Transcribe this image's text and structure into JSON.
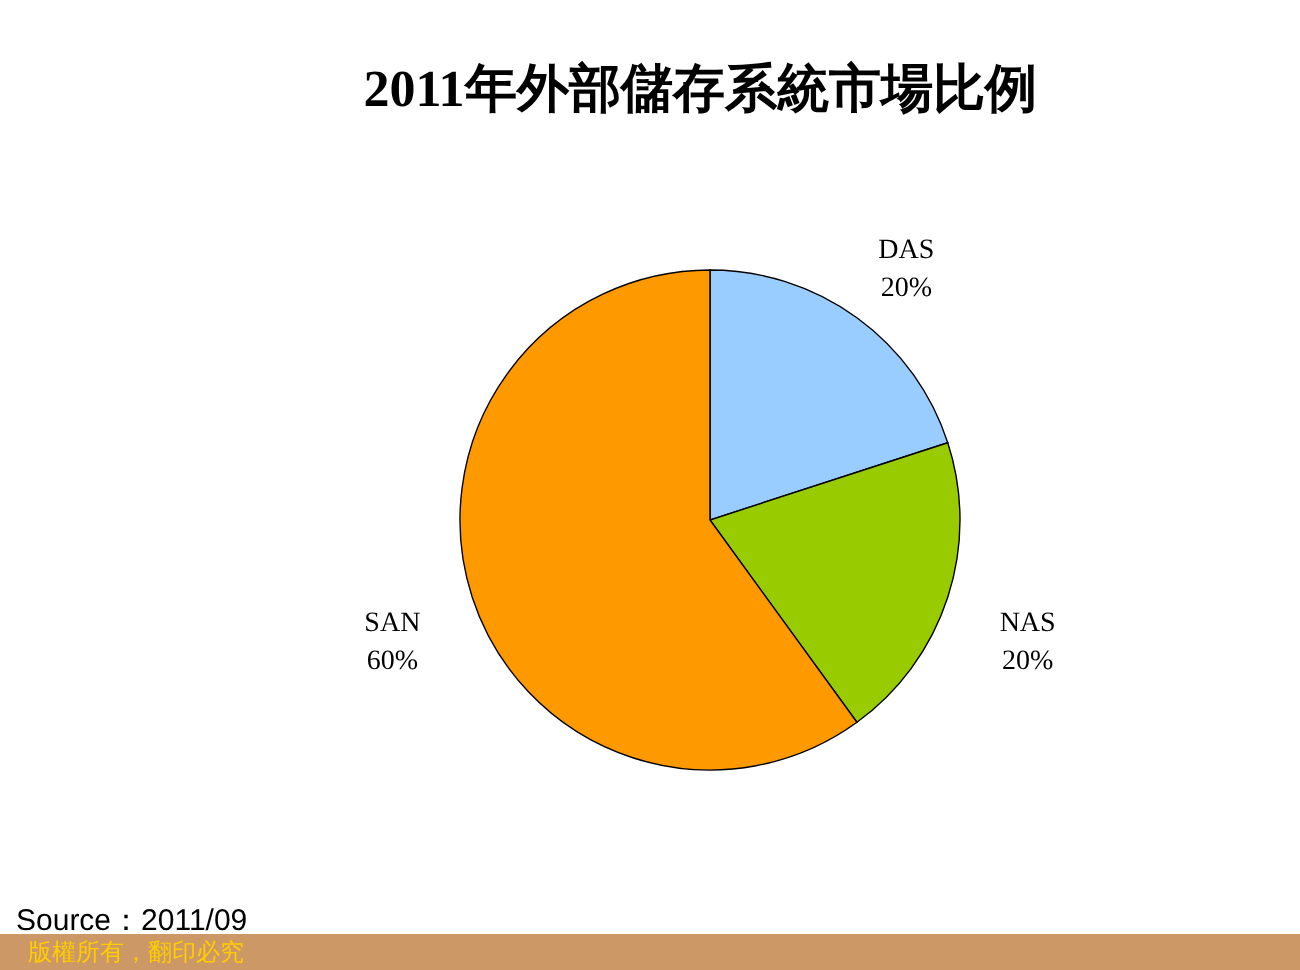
{
  "chart_data": {
    "type": "pie",
    "title": "2011年外部儲存系統市場比例",
    "categories": [
      "DAS",
      "NAS",
      "SAN"
    ],
    "values": [
      20,
      20,
      60
    ],
    "colors": [
      "#99ccff",
      "#99cc00",
      "#ff9900"
    ],
    "value_labels": [
      "20%",
      "20%",
      "60%"
    ],
    "annotations": [
      "Source：2011/09",
      "版權所有，翻印必究"
    ]
  }
}
